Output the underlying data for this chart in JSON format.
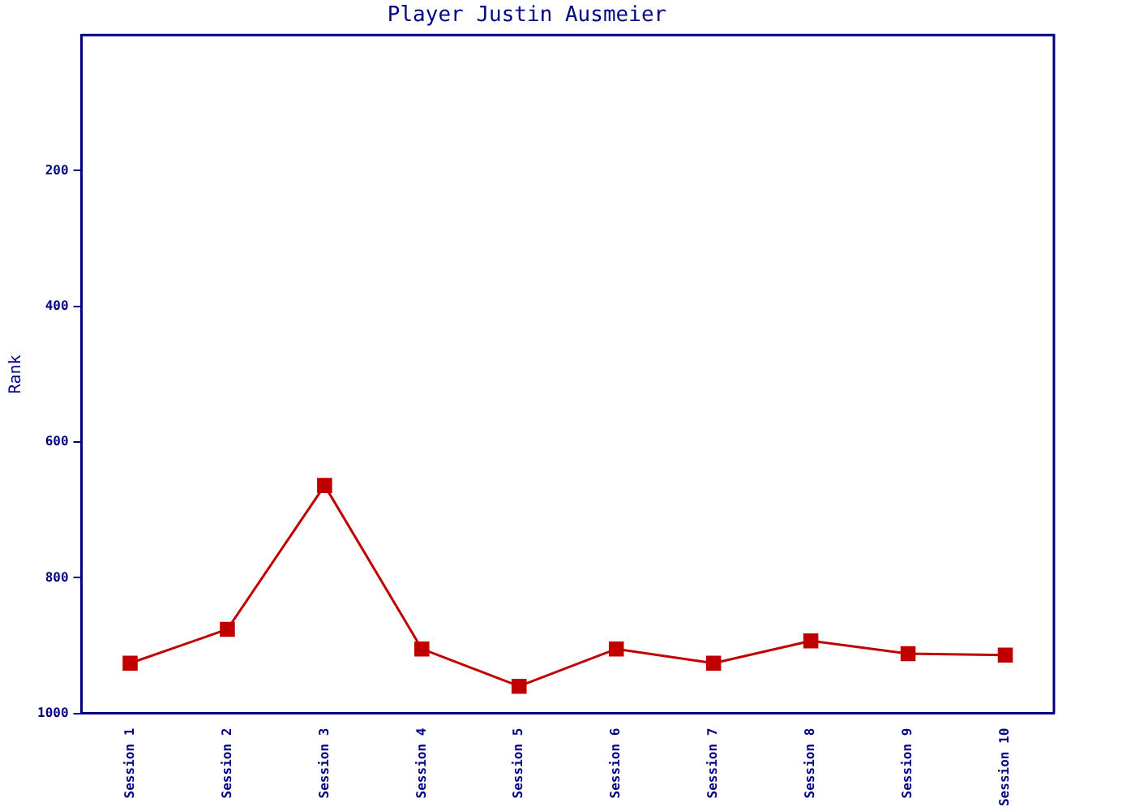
{
  "chart_data": {
    "type": "line",
    "title": "Player Justin Ausmeier",
    "ylabel": "Rank",
    "categories": [
      "Session 1",
      "Session 2",
      "Session 3",
      "Session 4",
      "Session 5",
      "Session 6",
      "Session 7",
      "Session 8",
      "Session 9",
      "Session 10"
    ],
    "series": [
      {
        "color": "#c00000",
        "values": [
          926,
          876,
          664,
          905,
          960,
          905,
          926,
          893,
          912,
          914
        ]
      }
    ],
    "ylim": [
      1000,
      0
    ],
    "yticks": [
      200,
      400,
      600,
      800,
      1000
    ],
    "grid": false,
    "legend": false,
    "marker": "square",
    "line_style": "solid"
  }
}
